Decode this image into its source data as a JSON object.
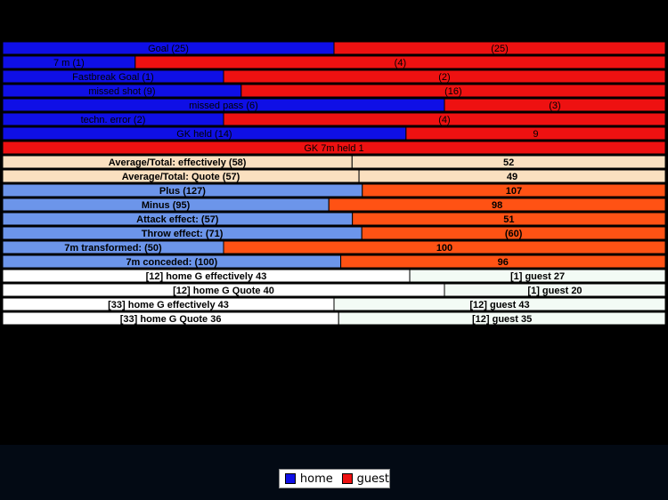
{
  "colors": {
    "home": "#0f0fe6",
    "guest": "#ee1111",
    "home_light": "#6c95ea",
    "guest_orange": "#ff5214",
    "summary_bg": "#fae0c0",
    "g_bg": "#ffffff",
    "g_guest_bg": "#f3fbf5"
  },
  "legend": {
    "home_label": "home",
    "guest_label": "guest"
  },
  "chart_data": {
    "type": "bar",
    "orientation": "horizontal-split",
    "rows": [
      {
        "home_label": "Goal (25)",
        "guest_label": "(25)",
        "home_value": 25,
        "guest_value": 25,
        "style": "primary"
      },
      {
        "home_label": "7 m (1)",
        "guest_label": "(4)",
        "home_value": 1,
        "guest_value": 4,
        "style": "primary"
      },
      {
        "home_label": "Fastbreak Goal (1)",
        "guest_label": "(2)",
        "home_value": 1,
        "guest_value": 2,
        "style": "primary"
      },
      {
        "home_label": "missed shot (9)",
        "guest_label": "(16)",
        "home_value": 9,
        "guest_value": 16,
        "style": "primary"
      },
      {
        "home_label": "missed pass (6)",
        "guest_label": "(3)",
        "home_value": 6,
        "guest_value": 3,
        "style": "primary"
      },
      {
        "home_label": "techn. error (2)",
        "guest_label": "(4)",
        "home_value": 2,
        "guest_value": 4,
        "style": "primary"
      },
      {
        "home_label": "GK held (14)",
        "guest_label": "9",
        "home_value": 14,
        "guest_value": 9,
        "style": "primary"
      },
      {
        "center_label": "GK 7m held 1",
        "home_value": 0,
        "guest_value": 1,
        "style": "primary"
      },
      {
        "home_label": "Average/Total: effectively (58)",
        "guest_label": "52",
        "home_value": 58,
        "guest_value": 52,
        "style": "summary"
      },
      {
        "home_label": "Average/Total: Quote (57)",
        "guest_label": "49",
        "home_value": 57,
        "guest_value": 49,
        "style": "summary"
      },
      {
        "home_label": "Plus (127)",
        "guest_label": "107",
        "home_value": 127,
        "guest_value": 107,
        "style": "effect"
      },
      {
        "home_label": "Minus (95)",
        "guest_label": "98",
        "home_value": 95,
        "guest_value": 98,
        "style": "effect"
      },
      {
        "home_label": "Attack effect: (57)",
        "guest_label": "51",
        "home_value": 57,
        "guest_value": 51,
        "style": "effect"
      },
      {
        "home_label": "Throw effect: (71)",
        "guest_label": "(60)",
        "home_value": 71,
        "guest_value": 60,
        "style": "effect"
      },
      {
        "home_label": "7m transformed: (50)",
        "guest_label": "100",
        "home_value": 50,
        "guest_value": 100,
        "style": "effect"
      },
      {
        "home_label": "7m conceded: (100)",
        "guest_label": "96",
        "home_value": 100,
        "guest_value": 96,
        "style": "effect"
      },
      {
        "home_label": "[12] home G effectively 43",
        "guest_label": "[1] guest  27",
        "home_value": 43,
        "guest_value": 27,
        "style": "goalie"
      },
      {
        "home_label": "[12] home G Quote 40",
        "guest_label": "[1] guest  20",
        "home_value": 40,
        "guest_value": 20,
        "style": "goalie"
      },
      {
        "home_label": "[33] home G effectively 43",
        "guest_label": "[12] guest  43",
        "home_value": 43,
        "guest_value": 43,
        "style": "goalie"
      },
      {
        "home_label": "[33] home G Quote 36",
        "guest_label": "[12] guest  35",
        "home_value": 36,
        "guest_value": 35,
        "style": "goalie"
      }
    ]
  }
}
